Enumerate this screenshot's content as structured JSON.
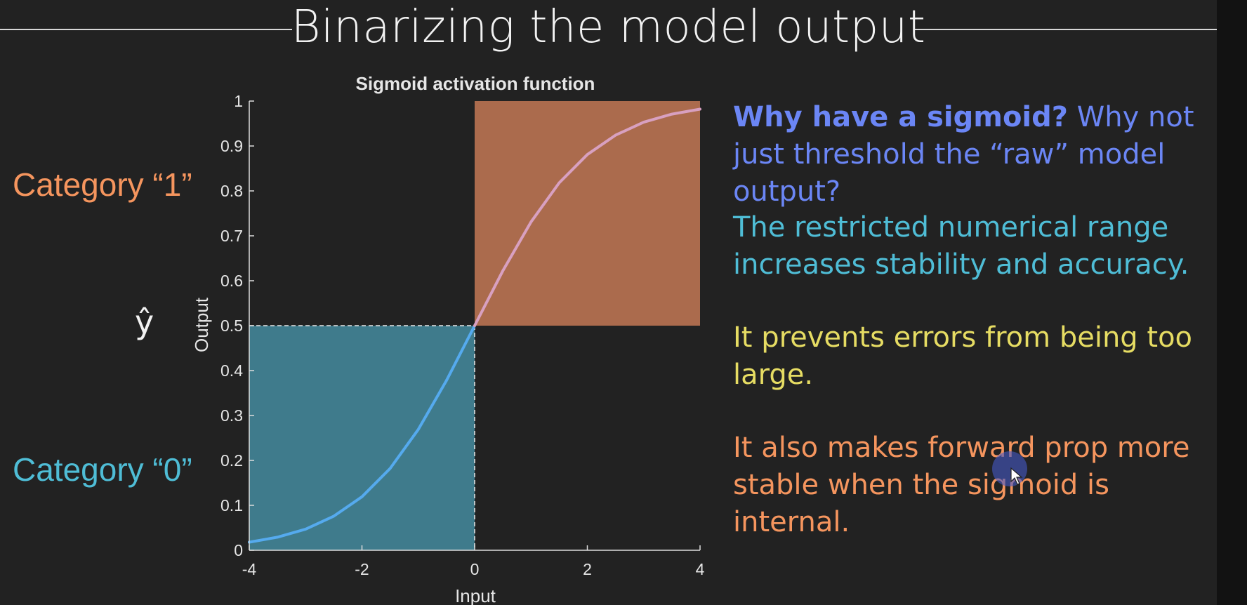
{
  "slide_title": "Binarizing the model output",
  "labels": {
    "category_1": "Category “1”",
    "category_0": "Category “0”",
    "y_hat": "ŷ"
  },
  "points": [
    {
      "bold": "Why have a sigmoid?",
      "text": " Why not just threshold the “raw” model output?",
      "color": "#6b86f5"
    },
    {
      "text": "The restricted numerical range increases stability and accuracy.",
      "color": "#4fbdd6"
    },
    {
      "text": "It prevents errors from being too large.",
      "color": "#e6dc63"
    },
    {
      "text": "It also makes forward prop more stable when the sigmoid is internal.",
      "color": "#f5955e"
    }
  ],
  "colors": {
    "category_1": "#f5955e",
    "category_0": "#4fbdd6",
    "region_1_fill": "#ab6b4d",
    "region_0_fill": "#3f7b8c",
    "curve": "#55aaee",
    "curve_in_region_1": "#d8a0c0"
  },
  "chart_data": {
    "type": "line",
    "title": "Sigmoid activation function",
    "xlabel": "Input",
    "ylabel": "Output",
    "xlim": [
      -4,
      4
    ],
    "ylim": [
      0,
      1
    ],
    "xticks": [
      -4,
      -2,
      0,
      2,
      4
    ],
    "yticks": [
      0,
      0.1,
      0.2,
      0.3,
      0.4,
      0.5,
      0.6,
      0.7,
      0.8,
      0.9,
      1
    ],
    "series": [
      {
        "x": [
          -4,
          -3.5,
          -3,
          -2.5,
          -2,
          -1.5,
          -1,
          -0.5,
          0,
          0.5,
          1,
          1.5,
          2,
          2.5,
          3,
          3.5,
          4
        ],
        "y": [
          0.018,
          0.029,
          0.047,
          0.076,
          0.119,
          0.182,
          0.269,
          0.378,
          0.5,
          0.622,
          0.731,
          0.818,
          0.881,
          0.924,
          0.953,
          0.971,
          0.982
        ]
      }
    ],
    "shaded_regions": [
      {
        "x": [
          0,
          4
        ],
        "y": [
          0.5,
          1
        ]
      },
      {
        "x": [
          -4,
          0
        ],
        "y": [
          0,
          0.5
        ]
      }
    ],
    "threshold": {
      "x": 0,
      "y": 0.5
    },
    "grid": false
  }
}
